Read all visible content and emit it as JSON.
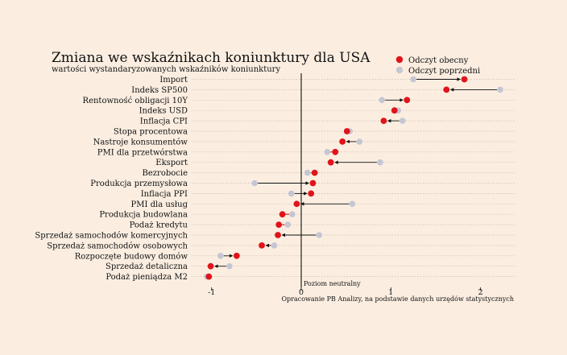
{
  "chart_data": {
    "type": "scatter",
    "title": "Zmiana we wskaźnikach koniunktury dla USA",
    "subtitle": "wartości wystandaryzowanych wskaźników koniunktury",
    "source": "Opracowanie PB Analizy, na podstawie danych urzędów statystycznych",
    "zero_label": "Poziom neutralny",
    "xlim": [
      -1.2,
      2.3
    ],
    "xticks": [
      -1,
      0,
      1,
      2
    ],
    "xtick_labels": [
      "-1",
      "0",
      "1",
      "2"
    ],
    "legend": {
      "position": "top-right",
      "current": "Odczyt obecny",
      "previous": "Odczyt poprzedni"
    },
    "colors": {
      "current": "#e0141a",
      "previous": "#c4c6d4",
      "axis": "#111111",
      "grid": "#c9b9a8",
      "arrow": "#111111",
      "small_change": "#e0141a"
    },
    "categories": [
      "Import",
      "Indeks SP500",
      "Rentowność obligacji 10Y",
      "Indeks USD",
      "Inflacja CPI",
      "Stopa procentowa",
      "Nastroje konsumentów",
      "PMI dla przetwórstwa",
      "Eksport",
      "Bezrobocie",
      "Produkcja przemysłowa",
      "Inflacja PPI",
      "PMI dla usług",
      "Produkcja budowlana",
      "Podaż kredytu",
      "Sprzedaż samochodów komercyjnych",
      "Sprzedaż samochodów osobowych",
      "Rozpoczęte budowy domów",
      "Sprzedaż detaliczna",
      "Podaż pieniądza M2"
    ],
    "series": [
      {
        "name": "Odczyt obecny",
        "values": [
          1.82,
          1.62,
          1.18,
          1.04,
          0.92,
          0.51,
          0.46,
          0.38,
          0.33,
          0.15,
          0.13,
          0.11,
          -0.05,
          -0.21,
          -0.25,
          -0.26,
          -0.44,
          -0.72,
          -1.01,
          -1.03
        ]
      },
      {
        "name": "Odczyt poprzedni",
        "values": [
          1.25,
          2.22,
          0.9,
          1.08,
          1.13,
          0.54,
          0.65,
          0.29,
          0.88,
          0.07,
          -0.52,
          -0.11,
          0.57,
          -0.1,
          -0.15,
          0.2,
          -0.3,
          -0.9,
          -0.8,
          -1.05
        ]
      }
    ]
  }
}
